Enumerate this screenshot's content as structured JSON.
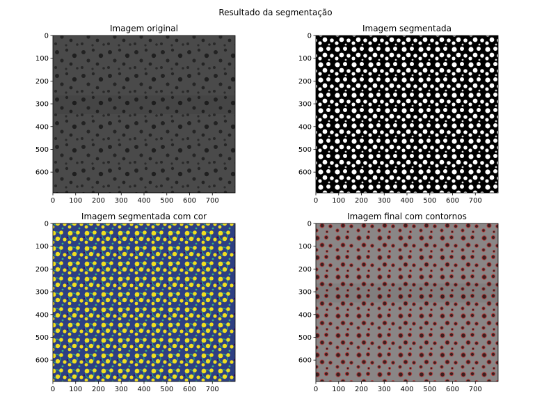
{
  "figure": {
    "suptitle": "Resultado da segmentação"
  },
  "panels": [
    {
      "id": "original",
      "title": "Imagem original",
      "image_kind": "grayscale-porous-micrograph",
      "x_ticks": [
        "0",
        "100",
        "200",
        "300",
        "400",
        "500",
        "600",
        "700"
      ],
      "y_ticks": [
        "0",
        "100",
        "200",
        "300",
        "400",
        "500",
        "600"
      ],
      "colors": {
        "background": "#4a4a4a",
        "pores": "#1e1e1e"
      }
    },
    {
      "id": "segmented",
      "title": "Imagem segmentada",
      "image_kind": "binary-mask",
      "x_ticks": [
        "0",
        "100",
        "200",
        "300",
        "400",
        "500",
        "600",
        "700"
      ],
      "y_ticks": [
        "0",
        "100",
        "200",
        "300",
        "400",
        "500",
        "600"
      ],
      "colors": {
        "background": "#000000",
        "pores": "#ffffff"
      }
    },
    {
      "id": "colored",
      "title": "Imagem segmentada com cor",
      "image_kind": "viridis-label-map",
      "x_ticks": [
        "0",
        "100",
        "200",
        "300",
        "400",
        "500",
        "600",
        "700"
      ],
      "y_ticks": [
        "0",
        "100",
        "200",
        "300",
        "400",
        "500",
        "600"
      ],
      "colors": {
        "background": "#2d3f83",
        "mid": "#26a785",
        "pores": "#f1de20"
      }
    },
    {
      "id": "contours",
      "title": "Imagem final com contornos",
      "image_kind": "grayscale-with-red-contours",
      "x_ticks": [
        "0",
        "100",
        "200",
        "300",
        "400",
        "500",
        "600",
        "700"
      ],
      "y_ticks": [
        "0",
        "100",
        "200",
        "300",
        "400",
        "500",
        "600"
      ],
      "colors": {
        "background": "#8a8686",
        "pores": "#3a2020",
        "contour": "#b03a3a"
      }
    }
  ]
}
